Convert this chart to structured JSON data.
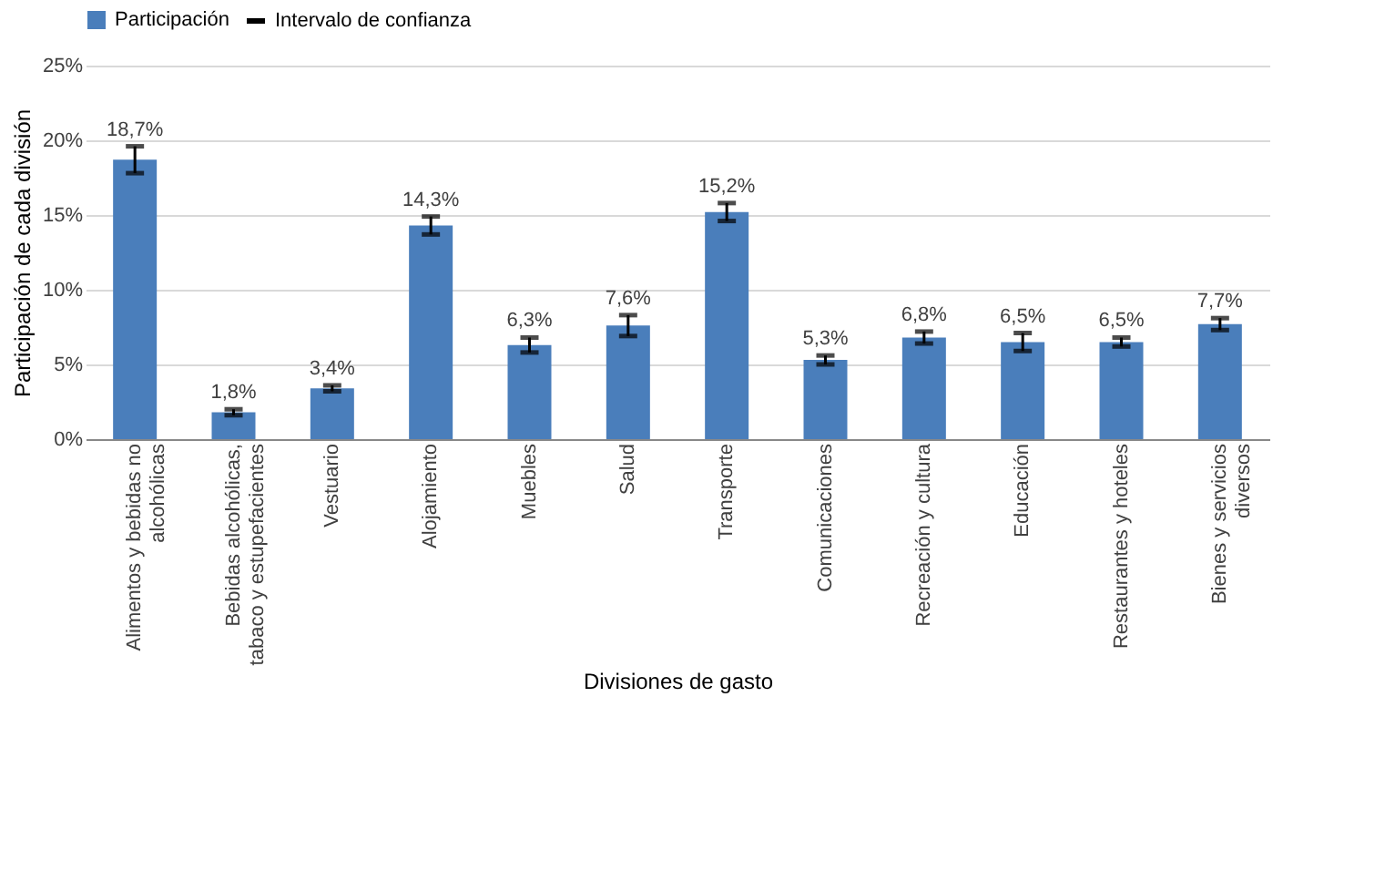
{
  "chart_data": {
    "type": "bar",
    "categories": [
      "Alimentos y bebidas no alcohólicas",
      "Bebidas alcohólicas, tabaco y estupefacientes",
      "Vestuario",
      "Alojamiento",
      "Muebles",
      "Salud",
      "Transporte",
      "Comunicaciones",
      "Recreación y cultura",
      "Educación",
      "Restaurantes y hoteles",
      "Bienes y servicios diversos"
    ],
    "series": [
      {
        "name": "Participación",
        "color": "#4a7ebb",
        "values": [
          18.7,
          1.8,
          3.4,
          14.3,
          6.3,
          7.6,
          15.2,
          5.3,
          6.8,
          6.5,
          6.5,
          7.7
        ],
        "errors": [
          0.9,
          0.2,
          0.2,
          0.6,
          0.5,
          0.7,
          0.6,
          0.3,
          0.4,
          0.6,
          0.3,
          0.4
        ],
        "value_labels": [
          "18,7%",
          "1,8%",
          "3,4%",
          "14,3%",
          "6,3%",
          "7,6%",
          "15,2%",
          "5,3%",
          "6,8%",
          "6,5%",
          "6,5%",
          "7,7%"
        ]
      }
    ],
    "annotations": [
      "Intervalo de confianza"
    ],
    "xlabel": "Divisiones de gasto",
    "ylabel": "Participación de cada división",
    "ylim": [
      0,
      25
    ],
    "yticks": [
      {
        "value": 0,
        "label": "0%"
      },
      {
        "value": 5,
        "label": "5%"
      },
      {
        "value": 10,
        "label": "10%"
      },
      {
        "value": 15,
        "label": "15%"
      },
      {
        "value": 20,
        "label": "20%"
      },
      {
        "value": 25,
        "label": "25%"
      }
    ],
    "grid": "y",
    "legend": "top"
  }
}
